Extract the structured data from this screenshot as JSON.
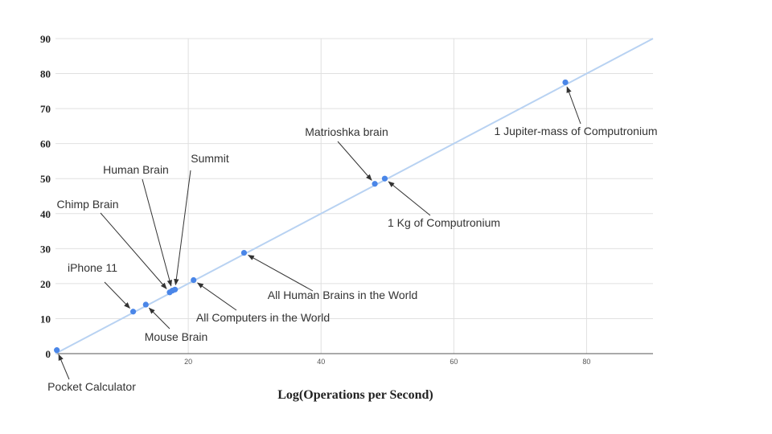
{
  "chart_data": {
    "type": "scatter",
    "xlabel": "Log(Operations per Second)",
    "ylabel": "",
    "xlim": [
      0,
      90
    ],
    "ylim": [
      0,
      90
    ],
    "xticks": [
      "20",
      "40",
      "60",
      "80"
    ],
    "yticks": [
      "0",
      "10",
      "20",
      "30",
      "40",
      "50",
      "60",
      "70",
      "80",
      "90"
    ],
    "grid": true,
    "trendline": {
      "from": [
        0,
        0
      ],
      "to": [
        90,
        90
      ]
    },
    "colors": {
      "point": "#4a86e8",
      "trendline": "#b8d2f2",
      "grid": "#e0e0e0",
      "axis": "#555555",
      "arrow": "#333333"
    },
    "points": [
      {
        "label": "Pocket Calculator",
        "x": 0.2,
        "y": 1
      },
      {
        "label": "iPhone 11",
        "x": 11.7,
        "y": 12
      },
      {
        "label": "Mouse Brain",
        "x": 13.6,
        "y": 14
      },
      {
        "label": "Chimp Brain",
        "x": 17.2,
        "y": 17.5
      },
      {
        "label": "Human Brain",
        "x": 17.6,
        "y": 18
      },
      {
        "label": "Summit",
        "x": 18.0,
        "y": 18.3
      },
      {
        "label": "All Computers in the World",
        "x": 20.8,
        "y": 21
      },
      {
        "label": "All Human Brains in the World",
        "x": 28.4,
        "y": 28.8
      },
      {
        "label": "Matrioshka brain",
        "x": 48.1,
        "y": 48.5
      },
      {
        "label": "1 Kg of Computronium",
        "x": 49.6,
        "y": 50
      },
      {
        "label": "1 Jupiter-mass of Computronium",
        "x": 76.8,
        "y": 77.5
      }
    ]
  }
}
